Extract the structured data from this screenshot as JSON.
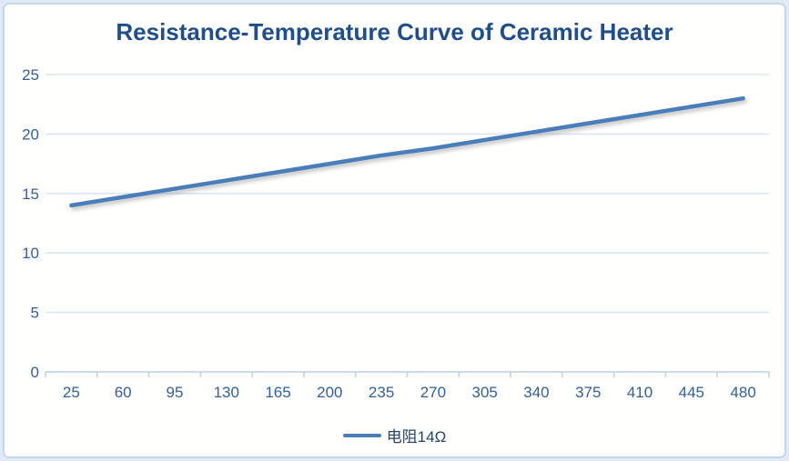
{
  "chart_data": {
    "type": "line",
    "title": "Resistance-Temperature Curve of Ceramic Heater",
    "categories": [
      25,
      60,
      95,
      130,
      165,
      200,
      235,
      270,
      305,
      340,
      375,
      410,
      445,
      480
    ],
    "series": [
      {
        "name": "电阻14Ω",
        "values": [
          14,
          14.7,
          15.4,
          16.1,
          16.8,
          17.5,
          18.2,
          18.8,
          19.5,
          20.2,
          20.9,
          21.6,
          22.3,
          23
        ],
        "color": "#4a7ebb"
      }
    ],
    "xlabel": "",
    "ylabel": "",
    "y_ticks": [
      0,
      5,
      10,
      15,
      20,
      25
    ],
    "ylim": [
      0,
      25
    ],
    "grid": "horizontal",
    "legend_position": "bottom",
    "colors": {
      "title": "#1f4e8a",
      "tick_label": "#31609e",
      "legend_label": "#21456e",
      "gridline": "#dce6f2",
      "axis_line": "#c3d6ea",
      "surface_border": "#c3d8ec",
      "outer_background": "#dfeaf5",
      "plot_background": "#fffffe"
    }
  }
}
